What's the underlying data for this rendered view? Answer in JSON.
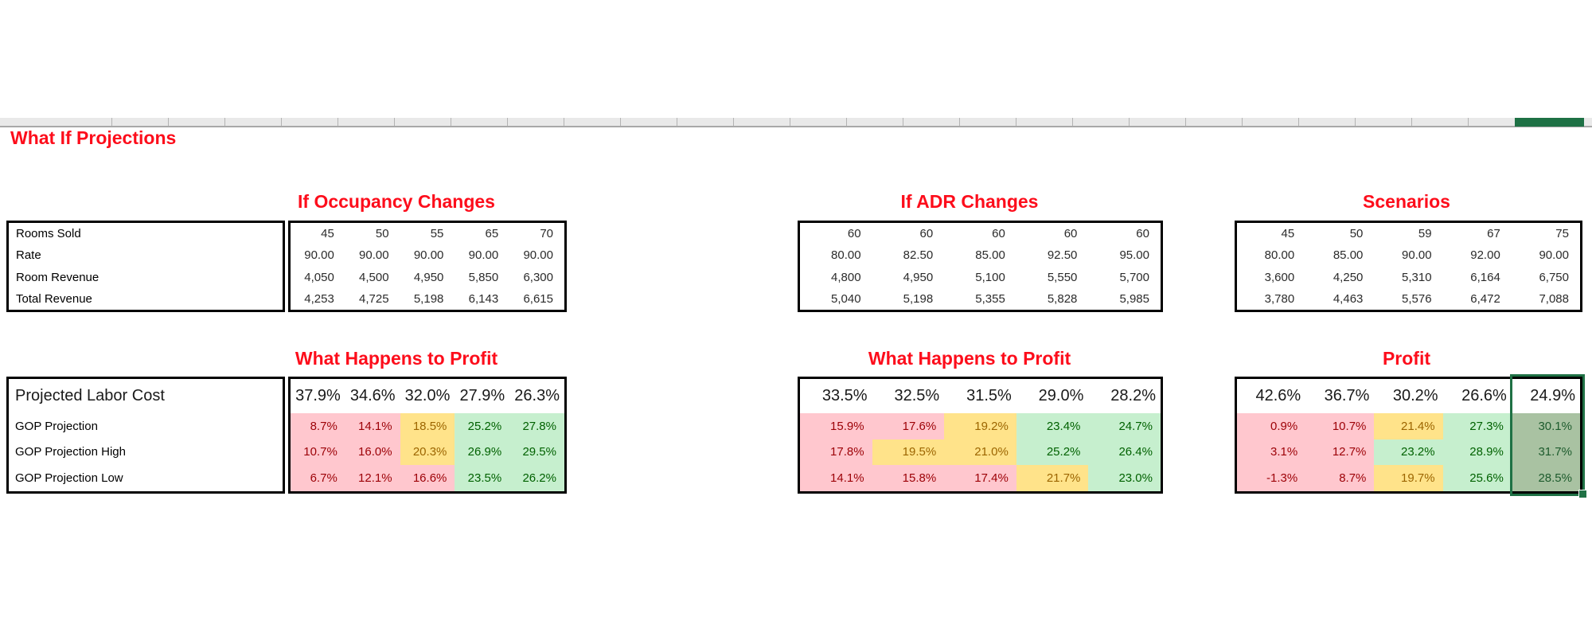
{
  "title": "What If Projections",
  "colors": {
    "title_red": "#FD0D1B",
    "bad_bg": "#FFC7CE",
    "bad_text": "#9C0006",
    "neutral_bg": "#FFE38A",
    "neutral_text": "#9C6500",
    "good_bg": "#C6EFCE",
    "good_text": "#006100",
    "selected_bg": "#A9C2A2",
    "selected_text": "#1D5B2D",
    "selection_border": "#1F7145",
    "header_strip_bg": "#E9E9E9",
    "selected_column_header_bg": "#1E7145"
  },
  "revenue_section": {
    "row_labels": [
      "Rooms Sold",
      "Rate",
      "Room Revenue",
      "Total Revenue"
    ],
    "tables": [
      {
        "title": "If Occupancy Changes",
        "rows": [
          [
            "45",
            "50",
            "55",
            "65",
            "70"
          ],
          [
            "90.00",
            "90.00",
            "90.00",
            "90.00",
            "90.00"
          ],
          [
            "4,050",
            "4,500",
            "4,950",
            "5,850",
            "6,300"
          ],
          [
            "4,253",
            "4,725",
            "5,198",
            "6,143",
            "6,615"
          ]
        ]
      },
      {
        "title": "If ADR Changes",
        "rows": [
          [
            "60",
            "60",
            "60",
            "60",
            "60"
          ],
          [
            "80.00",
            "82.50",
            "85.00",
            "92.50",
            "95.00"
          ],
          [
            "4,800",
            "4,950",
            "5,100",
            "5,550",
            "5,700"
          ],
          [
            "5,040",
            "5,198",
            "5,355",
            "5,828",
            "5,985"
          ]
        ]
      },
      {
        "title": "Scenarios",
        "rows": [
          [
            "45",
            "50",
            "59",
            "67",
            "75"
          ],
          [
            "80.00",
            "85.00",
            "90.00",
            "92.00",
            "90.00"
          ],
          [
            "3,600",
            "4,250",
            "5,310",
            "6,164",
            "6,750"
          ],
          [
            "3,780",
            "4,463",
            "5,576",
            "6,472",
            "7,088"
          ]
        ]
      }
    ]
  },
  "profit_section": {
    "header_label": "Projected Labor Cost",
    "row_labels": [
      "GOP Projection",
      "GOP Projection High",
      "GOP Projection Low"
    ],
    "tables": [
      {
        "title": "What Happens to Profit",
        "header": [
          "37.9%",
          "34.6%",
          "32.0%",
          "27.9%",
          "26.3%"
        ],
        "rows": [
          [
            {
              "v": "8.7%",
              "s": "bad"
            },
            {
              "v": "14.1%",
              "s": "bad"
            },
            {
              "v": "18.5%",
              "s": "neutral"
            },
            {
              "v": "25.2%",
              "s": "good"
            },
            {
              "v": "27.8%",
              "s": "good"
            }
          ],
          [
            {
              "v": "10.7%",
              "s": "bad"
            },
            {
              "v": "16.0%",
              "s": "bad"
            },
            {
              "v": "20.3%",
              "s": "neutral"
            },
            {
              "v": "26.9%",
              "s": "good"
            },
            {
              "v": "29.5%",
              "s": "good"
            }
          ],
          [
            {
              "v": "6.7%",
              "s": "bad"
            },
            {
              "v": "12.1%",
              "s": "bad"
            },
            {
              "v": "16.6%",
              "s": "bad"
            },
            {
              "v": "23.5%",
              "s": "good"
            },
            {
              "v": "26.2%",
              "s": "good"
            }
          ]
        ]
      },
      {
        "title": "What Happens to Profit",
        "header": [
          "33.5%",
          "32.5%",
          "31.5%",
          "29.0%",
          "28.2%"
        ],
        "rows": [
          [
            {
              "v": "15.9%",
              "s": "bad"
            },
            {
              "v": "17.6%",
              "s": "bad"
            },
            {
              "v": "19.2%",
              "s": "neutral"
            },
            {
              "v": "23.4%",
              "s": "good"
            },
            {
              "v": "24.7%",
              "s": "good"
            }
          ],
          [
            {
              "v": "17.8%",
              "s": "bad"
            },
            {
              "v": "19.5%",
              "s": "neutral"
            },
            {
              "v": "21.0%",
              "s": "neutral"
            },
            {
              "v": "25.2%",
              "s": "good"
            },
            {
              "v": "26.4%",
              "s": "good"
            }
          ],
          [
            {
              "v": "14.1%",
              "s": "bad"
            },
            {
              "v": "15.8%",
              "s": "bad"
            },
            {
              "v": "17.4%",
              "s": "bad"
            },
            {
              "v": "21.7%",
              "s": "neutral"
            },
            {
              "v": "23.0%",
              "s": "good"
            }
          ]
        ]
      },
      {
        "title": "Profit",
        "header": [
          "42.6%",
          "36.7%",
          "30.2%",
          "26.6%",
          "24.9%"
        ],
        "rows": [
          [
            {
              "v": "0.9%",
              "s": "bad"
            },
            {
              "v": "10.7%",
              "s": "bad"
            },
            {
              "v": "21.4%",
              "s": "neutral"
            },
            {
              "v": "27.3%",
              "s": "good"
            },
            {
              "v": "30.1%",
              "s": "sel"
            }
          ],
          [
            {
              "v": "3.1%",
              "s": "bad"
            },
            {
              "v": "12.7%",
              "s": "bad"
            },
            {
              "v": "23.2%",
              "s": "good"
            },
            {
              "v": "28.9%",
              "s": "good"
            },
            {
              "v": "31.7%",
              "s": "sel"
            }
          ],
          [
            {
              "v": "-1.3%",
              "s": "bad"
            },
            {
              "v": "8.7%",
              "s": "bad"
            },
            {
              "v": "19.7%",
              "s": "neutral"
            },
            {
              "v": "25.6%",
              "s": "good"
            },
            {
              "v": "28.5%",
              "s": "sel"
            }
          ]
        ],
        "selection": {
          "column_index": 4,
          "active_cell_value": "24.9%"
        }
      }
    ]
  }
}
